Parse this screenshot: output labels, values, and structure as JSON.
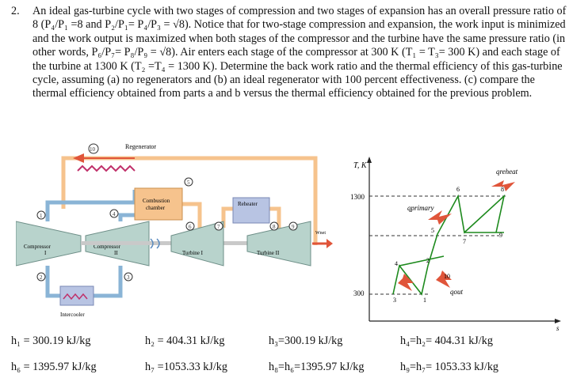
{
  "problem": {
    "number": "2.",
    "text": "An ideal gas-turbine cycle with two stages of compression and two stages of expansion has an overall pressure ratio of 8 (P₄/P₁ =8 and P₂/P₁= P₄/P₃ = √8). Notice that for two-stage compression and expansion, the work input is minimized and the work output is maximized when both stages of the compressor and the turbine have the same pressure ratio (in other words, P₆/P₇= P₈/P₉ = √8). Air enters each stage of the compressor at 300 K (T₁ = T₃= 300 K) and each stage of the turbine at 1300 K (T₂ =T₄ = 1300 K). Determine the back work ratio and the thermal efficiency of this gas-turbine cycle, assuming (a) no regenerators and (b) an ideal regenerator with 100 percent effectiveness. (c) compare the thermal efficiency obtained from parts a and b versus the thermal efficiency obtained for the previous problem."
  },
  "schematic": {
    "regenerator": "Regenerator",
    "combustion_chamber_line1": "Combustion",
    "combustion_chamber_line2": "chamber",
    "reheater": "Reheater",
    "compressor1_line1": "Compressor",
    "compressor1_line2": "I",
    "compressor2_line1": "Compressor",
    "compressor2_line2": "II",
    "turbine1": "Turbine I",
    "turbine2": "Turbine II",
    "wnet": "Wnet",
    "intercooler": "Intercooler",
    "states": [
      "1",
      "2",
      "3",
      "4",
      "5",
      "6",
      "7",
      "8",
      "9",
      "10"
    ]
  },
  "ts_diagram": {
    "y_axis_label": "T, K",
    "x_axis_label": "s",
    "t_high": "1300",
    "t_low": "300",
    "q_reheat": "qreheat",
    "q_primary": "qprimary",
    "q_out": "qout",
    "points": [
      "1",
      "2",
      "3",
      "4",
      "5",
      "6",
      "7",
      "8",
      "9",
      "10"
    ]
  },
  "results": {
    "h1": "h₁ = 300.19 kJ/kg",
    "h2": "h₂ = 404.31 kJ/kg",
    "h3": "h₃=300.19 kJ/kg",
    "h4": "h₄=h₂= 404.31 kJ/kg",
    "h6": "h₆ = 1395.97 kJ/kg",
    "h7": "h₇ =1053.33 kJ/kg",
    "h8": "h₈=h₆=1395.97 kJ/kg",
    "h9": "h₉=h₇= 1053.33 kJ/kg"
  }
}
